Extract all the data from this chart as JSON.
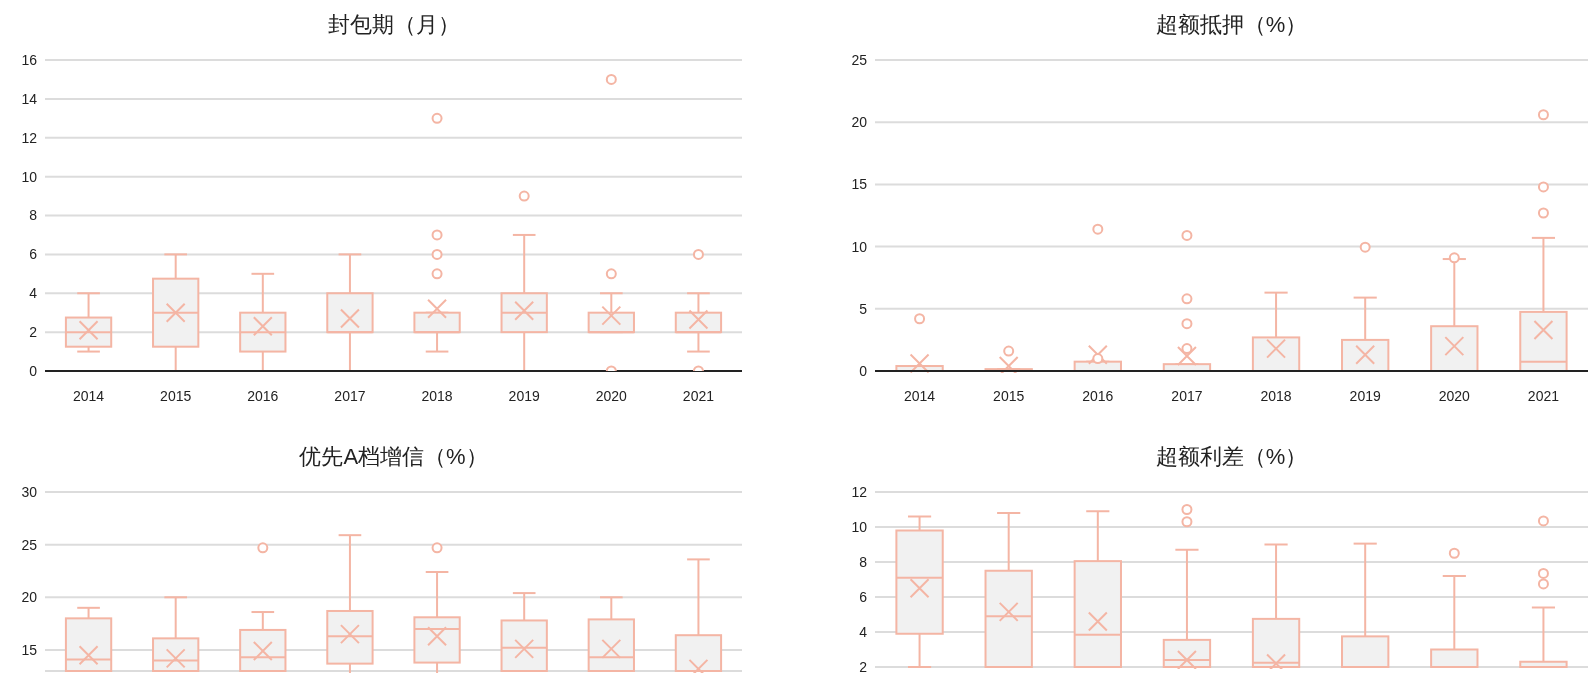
{
  "chart_data": [
    {
      "type": "box",
      "title": "封包期（月）",
      "categories": [
        "2014",
        "2015",
        "2016",
        "2017",
        "2018",
        "2019",
        "2020",
        "2021"
      ],
      "color": "#f4b5a4",
      "ylim": [
        0,
        16
      ],
      "yticks": [
        0,
        2,
        4,
        6,
        8,
        10,
        12,
        14,
        16
      ],
      "grid": "y",
      "marker": "cross",
      "boxes": [
        {
          "low": 1,
          "q1": 1.25,
          "median": 2,
          "q3": 2.75,
          "high": 4,
          "mean": 2.1
        },
        {
          "low": 0,
          "q1": 1.25,
          "median": 3,
          "q3": 4.75,
          "high": 6,
          "mean": 3.0
        },
        {
          "low": 0,
          "q1": 1,
          "median": 2,
          "q3": 3,
          "high": 5,
          "mean": 2.3
        },
        {
          "low": 0,
          "q1": 2,
          "median": 2,
          "q3": 4,
          "high": 6,
          "mean": 2.7
        },
        {
          "low": 1,
          "q1": 2,
          "median": 2,
          "q3": 3,
          "high": 3,
          "mean": 3.2,
          "outliers": [
            5,
            6,
            7,
            13
          ]
        },
        {
          "low": 0,
          "q1": 2,
          "median": 3,
          "q3": 4,
          "high": 7,
          "mean": 3.1,
          "outliers": [
            9
          ]
        },
        {
          "low": 2,
          "q1": 2,
          "median": 2,
          "q3": 3,
          "high": 4,
          "mean": 2.85,
          "outliers": [
            0,
            5,
            15
          ]
        },
        {
          "low": 1,
          "q1": 2,
          "median": 2,
          "q3": 3,
          "high": 4,
          "mean": 2.65,
          "outliers": [
            0,
            6
          ]
        }
      ]
    },
    {
      "type": "box",
      "title": "超额抵押（%）",
      "categories": [
        "2014",
        "2015",
        "2016",
        "2017",
        "2018",
        "2019",
        "2020",
        "2021"
      ],
      "color": "#f4b5a4",
      "ylim": [
        0,
        25
      ],
      "yticks": [
        0,
        5,
        10,
        15,
        20,
        25
      ],
      "grid": "y",
      "marker": "cross",
      "boxes": [
        {
          "low": 0,
          "q1": 0,
          "median": 0,
          "q3": 0.4,
          "high": 0.4,
          "mean": 0.6,
          "outliers": [
            4.2
          ]
        },
        {
          "low": 0,
          "q1": 0,
          "median": 0,
          "q3": 0.15,
          "high": 0.15,
          "mean": 0.4,
          "outliers": [
            1.6
          ]
        },
        {
          "low": 0,
          "q1": 0,
          "median": 0,
          "q3": 0.75,
          "high": 0.75,
          "mean": 1.3,
          "outliers": [
            1.0,
            11.4
          ]
        },
        {
          "low": 0,
          "q1": 0,
          "median": 0,
          "q3": 0.55,
          "high": 0.55,
          "mean": 1.2,
          "outliers": [
            1.8,
            3.8,
            5.8,
            10.9
          ]
        },
        {
          "low": 0,
          "q1": 0,
          "median": 0,
          "q3": 2.7,
          "high": 6.3,
          "mean": 1.8
        },
        {
          "low": 0,
          "q1": 0,
          "median": 0,
          "q3": 2.5,
          "high": 5.9,
          "mean": 1.3,
          "outliers": [
            9.95
          ]
        },
        {
          "low": 0,
          "q1": 0,
          "median": 0,
          "q3": 3.6,
          "high": 9.0,
          "mean": 2.0,
          "outliers": [
            9.1
          ]
        },
        {
          "low": 0,
          "q1": 0,
          "median": 0.75,
          "q3": 4.75,
          "high": 10.7,
          "mean": 3.3,
          "outliers": [
            12.7,
            14.8,
            20.6
          ]
        }
      ]
    },
    {
      "type": "box",
      "title": "优先A档增信（%）",
      "categories": [
        null,
        null,
        null,
        null,
        null,
        null,
        null,
        null
      ],
      "color": "#f4b5a4",
      "ylim": [
        13,
        30
      ],
      "yticks": [
        15,
        20,
        25,
        30
      ],
      "grid": "y",
      "marker": "cross",
      "tick_labels": "y",
      "boxes": [
        {
          "low": 13,
          "q1": 13,
          "median": 14.1,
          "q3": 18.0,
          "high": 19.0,
          "mean": 14.5
        },
        {
          "low": 13,
          "q1": 13,
          "median": 14.0,
          "q3": 16.1,
          "high": 20.0,
          "mean": 14.2
        },
        {
          "low": 13,
          "q1": 13,
          "median": 14.3,
          "q3": 16.9,
          "high": 18.6,
          "mean": 14.9,
          "outliers": [
            24.7
          ]
        },
        {
          "q1": 13.7,
          "median": 16.3,
          "q3": 18.7,
          "high": 25.9,
          "mean": 16.5
        },
        {
          "q1": 13.8,
          "median": 17.0,
          "q3": 18.1,
          "high": 22.4,
          "mean": 16.3,
          "outliers": [
            24.7
          ]
        },
        {
          "low": 13,
          "q1": 13,
          "median": 15.2,
          "q3": 17.8,
          "high": 20.4,
          "mean": 15.1
        },
        {
          "low": 13,
          "q1": 13,
          "median": 14.3,
          "q3": 17.9,
          "high": 20.0,
          "mean": 15.1
        },
        {
          "low": 13,
          "q1": 13,
          "median": 13,
          "q3": 16.4,
          "high": 23.6,
          "mean": 13.2
        }
      ]
    },
    {
      "type": "box",
      "title": "超额利差（%）",
      "categories": [
        null,
        null,
        null,
        null,
        null,
        null,
        null,
        null
      ],
      "color": "#f4b5a4",
      "ylim": [
        2,
        12
      ],
      "yticks": [
        2,
        4,
        6,
        8,
        10,
        12
      ],
      "grid": "y",
      "marker": "cross",
      "tick_labels": "y",
      "boxes": [
        {
          "low": 2,
          "q1": 3.9,
          "median": 7.1,
          "q3": 9.8,
          "high": 10.6,
          "mean": 6.5
        },
        {
          "low": 2,
          "q1": 2.0,
          "median": 4.9,
          "q3": 7.5,
          "high": 10.8,
          "mean": 5.15
        },
        {
          "low": 2,
          "q1": 2,
          "median": 3.85,
          "q3": 8.05,
          "high": 10.9,
          "mean": 4.6
        },
        {
          "low": 2,
          "q1": 2,
          "median": 2.4,
          "q3": 3.55,
          "high": 8.7,
          "mean": 2.4,
          "outliers": [
            10.3,
            11.0
          ]
        },
        {
          "low": 2,
          "q1": 2,
          "median": 2.25,
          "q3": 4.75,
          "high": 9.0,
          "mean": 2.2
        },
        {
          "low": 2,
          "q1": 2,
          "median": 2,
          "q3": 3.75,
          "high": 9.05
        },
        {
          "low": 2,
          "q1": 2,
          "median": 2,
          "q3": 3.0,
          "high": 7.2,
          "outliers": [
            8.5
          ]
        },
        {
          "low": 2,
          "q1": 2,
          "median": 2,
          "q3": 2.3,
          "high": 5.4,
          "outliers": [
            6.75,
            7.35,
            10.35
          ]
        }
      ]
    }
  ]
}
